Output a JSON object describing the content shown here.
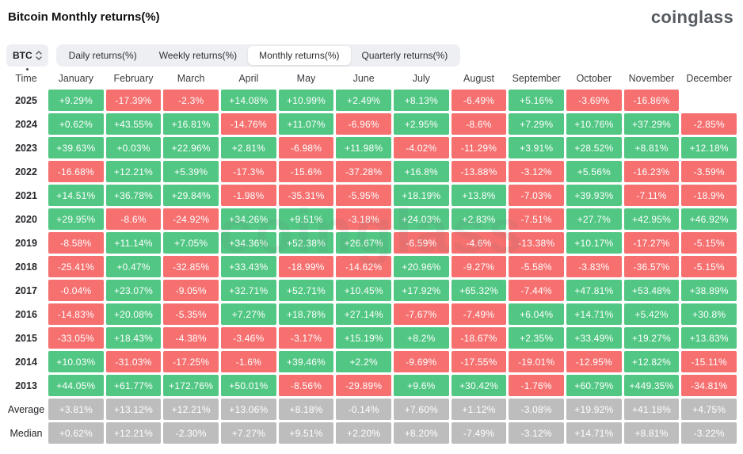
{
  "header": {
    "title": "Bitcoin Monthly returns(%)",
    "logo": "coinglass"
  },
  "controls": {
    "coin_selector": {
      "label": "BTC"
    },
    "tabs": [
      {
        "id": "daily",
        "label": "Daily returns(%)",
        "active": false
      },
      {
        "id": "weekly",
        "label": "Weekly returns(%)",
        "active": false
      },
      {
        "id": "monthly",
        "label": "Monthly returns(%)",
        "active": true
      },
      {
        "id": "quarterly",
        "label": "Quarterly returns(%)",
        "active": false
      }
    ]
  },
  "colors": {
    "positive": "#52c784",
    "negative": "#f67070",
    "summary": "#bdbdbd"
  },
  "watermark": "coinglass",
  "table": {
    "columns": [
      "Time",
      "January",
      "February",
      "March",
      "April",
      "May",
      "June",
      "July",
      "August",
      "September",
      "October",
      "November",
      "December"
    ],
    "rows": [
      {
        "label": "2025",
        "type": "year",
        "cells": [
          "+9.29%",
          "-17.39%",
          "-2.3%",
          "+14.08%",
          "+10.99%",
          "+2.49%",
          "+8.13%",
          "-6.49%",
          "+5.16%",
          "-3.69%",
          "-16.86%",
          null
        ]
      },
      {
        "label": "2024",
        "type": "year",
        "cells": [
          "+0.62%",
          "+43.55%",
          "+16.81%",
          "-14.76%",
          "+11.07%",
          "-6.96%",
          "+2.95%",
          "-8.6%",
          "+7.29%",
          "+10.76%",
          "+37.29%",
          "-2.85%"
        ]
      },
      {
        "label": "2023",
        "type": "year",
        "cells": [
          "+39.63%",
          "+0.03%",
          "+22.96%",
          "+2.81%",
          "-6.98%",
          "+11.98%",
          "-4.02%",
          "-11.29%",
          "+3.91%",
          "+28.52%",
          "+8.81%",
          "+12.18%"
        ]
      },
      {
        "label": "2022",
        "type": "year",
        "cells": [
          "-16.68%",
          "+12.21%",
          "+5.39%",
          "-17.3%",
          "-15.6%",
          "-37.28%",
          "+16.8%",
          "-13.88%",
          "-3.12%",
          "+5.56%",
          "-16.23%",
          "-3.59%"
        ]
      },
      {
        "label": "2021",
        "type": "year",
        "cells": [
          "+14.51%",
          "+36.78%",
          "+29.84%",
          "-1.98%",
          "-35.31%",
          "-5.95%",
          "+18.19%",
          "+13.8%",
          "-7.03%",
          "+39.93%",
          "-7.11%",
          "-18.9%"
        ]
      },
      {
        "label": "2020",
        "type": "year",
        "cells": [
          "+29.95%",
          "-8.6%",
          "-24.92%",
          "+34.26%",
          "+9.51%",
          "-3.18%",
          "+24.03%",
          "+2.83%",
          "-7.51%",
          "+27.7%",
          "+42.95%",
          "+46.92%"
        ]
      },
      {
        "label": "2019",
        "type": "year",
        "cells": [
          "-8.58%",
          "+11.14%",
          "+7.05%",
          "+34.36%",
          "+52.38%",
          "+26.67%",
          "-6.59%",
          "-4.6%",
          "-13.38%",
          "+10.17%",
          "-17.27%",
          "-5.15%"
        ]
      },
      {
        "label": "2018",
        "type": "year",
        "cells": [
          "-25.41%",
          "+0.47%",
          "-32.85%",
          "+33.43%",
          "-18.99%",
          "-14.62%",
          "+20.96%",
          "-9.27%",
          "-5.58%",
          "-3.83%",
          "-36.57%",
          "-5.15%"
        ]
      },
      {
        "label": "2017",
        "type": "year",
        "cells": [
          "-0.04%",
          "+23.07%",
          "-9.05%",
          "+32.71%",
          "+52.71%",
          "+10.45%",
          "+17.92%",
          "+65.32%",
          "-7.44%",
          "+47.81%",
          "+53.48%",
          "+38.89%"
        ]
      },
      {
        "label": "2016",
        "type": "year",
        "cells": [
          "-14.83%",
          "+20.08%",
          "-5.35%",
          "+7.27%",
          "+18.78%",
          "+27.14%",
          "-7.67%",
          "-7.49%",
          "+6.04%",
          "+14.71%",
          "+5.42%",
          "+30.8%"
        ]
      },
      {
        "label": "2015",
        "type": "year",
        "cells": [
          "-33.05%",
          "+18.43%",
          "-4.38%",
          "-3.46%",
          "-3.17%",
          "+15.19%",
          "+8.2%",
          "-18.67%",
          "+2.35%",
          "+33.49%",
          "+19.27%",
          "+13.83%"
        ]
      },
      {
        "label": "2014",
        "type": "year",
        "cells": [
          "+10.03%",
          "-31.03%",
          "-17.25%",
          "-1.6%",
          "+39.46%",
          "+2.2%",
          "-9.69%",
          "-17.55%",
          "-19.01%",
          "-12.95%",
          "+12.82%",
          "-15.11%"
        ]
      },
      {
        "label": "2013",
        "type": "year",
        "cells": [
          "+44.05%",
          "+61.77%",
          "+172.76%",
          "+50.01%",
          "-8.56%",
          "-29.89%",
          "+9.6%",
          "+30.42%",
          "-1.76%",
          "+60.79%",
          "+449.35%",
          "-34.81%"
        ]
      },
      {
        "label": "Average",
        "type": "summary",
        "cells": [
          "+3.81%",
          "+13.12%",
          "+12.21%",
          "+13.06%",
          "+8.18%",
          "-0.14%",
          "+7.60%",
          "+1.12%",
          "-3.08%",
          "+19.92%",
          "+41.18%",
          "+4.75%"
        ]
      },
      {
        "label": "Median",
        "type": "summary",
        "cells": [
          "+0.62%",
          "+12.21%",
          "-2.30%",
          "+7.27%",
          "+9.51%",
          "+2.20%",
          "+8.20%",
          "-7.49%",
          "-3.12%",
          "+14.71%",
          "+8.81%",
          "-3.22%"
        ]
      }
    ]
  }
}
